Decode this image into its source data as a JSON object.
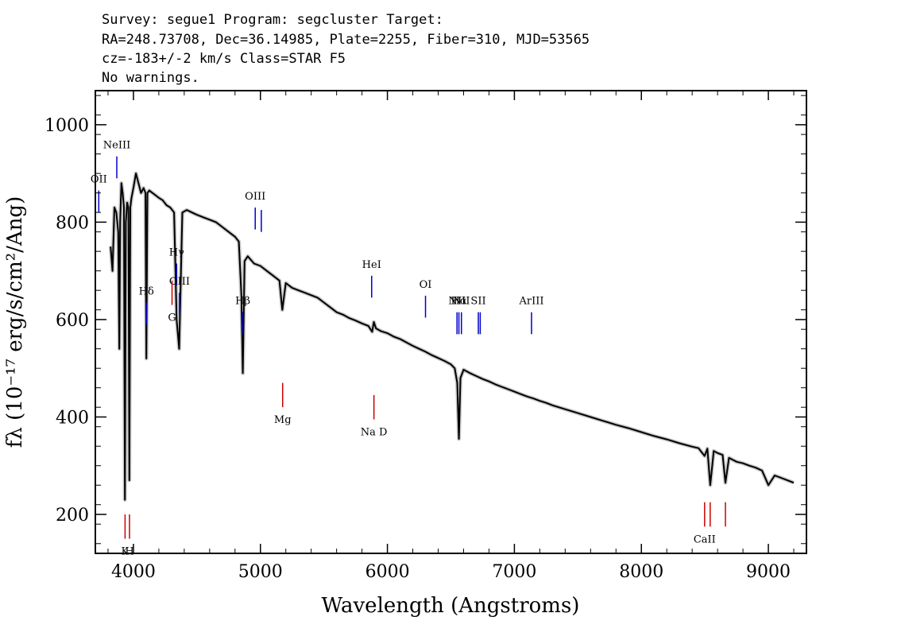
{
  "header": {
    "line1": "Survey: segue1 Program: segcluster Target:",
    "line2": "RA=248.73708, Dec=36.14985, Plate=2255, Fiber=310, MJD=53565",
    "line3": "cz=-183+/-2 km/s Class=STAR F5",
    "line4": "No warnings."
  },
  "chart_data": {
    "type": "line",
    "xlabel": "Wavelength (Angstroms)",
    "ylabel": "fλ (10⁻¹⁷ erg/s/cm²/Ang)",
    "xlim": [
      3700,
      9300
    ],
    "ylim": [
      120,
      1070
    ],
    "x_ticks": [
      4000,
      5000,
      6000,
      7000,
      8000,
      9000
    ],
    "y_ticks": [
      200,
      400,
      600,
      800,
      1000
    ],
    "x_tick_labels": [
      "4000",
      "5000",
      "6000",
      "7000",
      "8000",
      "9000"
    ],
    "y_tick_labels": [
      "200",
      "400",
      "600",
      "800",
      "1000"
    ],
    "grid": false,
    "series": [
      {
        "color": "#000000",
        "error_color": "#b0b0b0",
        "x": [
          3820,
          3835,
          3850,
          3865,
          3880,
          3889,
          3895,
          3905,
          3915,
          3925,
          3933,
          3940,
          3950,
          3960,
          3968,
          3975,
          3985,
          4000,
          4020,
          4040,
          4060,
          4080,
          4095,
          4102,
          4110,
          4125,
          4150,
          4175,
          4200,
          4230,
          4260,
          4290,
          4320,
          4340,
          4360,
          4385,
          4420,
          4460,
          4500,
          4550,
          4600,
          4650,
          4700,
          4750,
          4800,
          4830,
          4850,
          4861,
          4875,
          4900,
          4950,
          5000,
          5050,
          5100,
          5150,
          5172,
          5200,
          5250,
          5300,
          5350,
          5400,
          5450,
          5500,
          5550,
          5600,
          5650,
          5700,
          5750,
          5800,
          5850,
          5880,
          5893,
          5910,
          5950,
          6000,
          6050,
          6100,
          6150,
          6200,
          6250,
          6300,
          6350,
          6400,
          6450,
          6500,
          6530,
          6550,
          6563,
          6575,
          6600,
          6650,
          6700,
          6750,
          6800,
          6850,
          6900,
          6950,
          7000,
          7050,
          7100,
          7150,
          7200,
          7250,
          7300,
          7400,
          7500,
          7600,
          7700,
          7800,
          7900,
          8000,
          8100,
          8200,
          8300,
          8400,
          8450,
          8498,
          8520,
          8542,
          8570,
          8600,
          8640,
          8662,
          8690,
          8750,
          8800,
          8850,
          8900,
          8950,
          9000,
          9050,
          9100,
          9150,
          9200
        ],
        "values": [
          750,
          700,
          830,
          820,
          780,
          540,
          800,
          880,
          860,
          830,
          230,
          800,
          840,
          830,
          270,
          830,
          850,
          870,
          900,
          880,
          860,
          870,
          860,
          520,
          860,
          865,
          860,
          855,
          850,
          845,
          835,
          830,
          820,
          600,
          540,
          820,
          825,
          820,
          815,
          810,
          805,
          800,
          790,
          780,
          770,
          760,
          650,
          490,
          720,
          730,
          715,
          710,
          700,
          690,
          680,
          620,
          675,
          665,
          660,
          655,
          650,
          645,
          635,
          625,
          615,
          610,
          603,
          598,
          592,
          587,
          575,
          595,
          582,
          576,
          572,
          565,
          560,
          553,
          546,
          540,
          534,
          527,
          521,
          515,
          508,
          500,
          470,
          355,
          480,
          497,
          490,
          484,
          478,
          473,
          467,
          462,
          457,
          452,
          447,
          442,
          438,
          433,
          429,
          424,
          416,
          408,
          400,
          392,
          384,
          377,
          369,
          361,
          354,
          346,
          339,
          336,
          320,
          335,
          260,
          330,
          326,
          322,
          265,
          316,
          308,
          305,
          300,
          296,
          290,
          260,
          280,
          275,
          270,
          265
        ]
      }
    ],
    "line_markers": [
      {
        "label": "OII",
        "x": 3727,
        "color": "#0000cc",
        "group": "emission"
      },
      {
        "label": "NeIII",
        "x": 3869,
        "color": "#0000cc",
        "group": "emission"
      },
      {
        "label": "Hδ",
        "x": 4102,
        "color": "#0000cc",
        "group": "emission"
      },
      {
        "label": "Hγ",
        "x": 4340,
        "color": "#0000cc",
        "group": "emission"
      },
      {
        "label": "OIII",
        "x": 4363,
        "color": "#0000cc",
        "group": "emission"
      },
      {
        "label": "Hβ",
        "x": 4861,
        "color": "#0000cc",
        "group": "emission"
      },
      {
        "label": "OIII",
        "x": 4959,
        "color": "#0000cc",
        "group": "emission"
      },
      {
        "label": "",
        "x": 5007,
        "color": "#0000cc",
        "group": "emission"
      },
      {
        "label": "HeI",
        "x": 5876,
        "color": "#0000cc",
        "group": "emission"
      },
      {
        "label": "OI",
        "x": 6300,
        "color": "#0000cc",
        "group": "emission"
      },
      {
        "label": "NII",
        "x": 6548,
        "color": "#0000cc",
        "group": "emission"
      },
      {
        "label": "Hα",
        "x": 6563,
        "color": "#0000cc",
        "group": "emission"
      },
      {
        "label": "NII",
        "x": 6583,
        "color": "#0000cc",
        "group": "emission"
      },
      {
        "label": "SII",
        "x": 6716,
        "color": "#0000cc",
        "group": "emission"
      },
      {
        "label": "",
        "x": 6731,
        "color": "#0000cc",
        "group": "emission"
      },
      {
        "label": "ArIII",
        "x": 7135,
        "color": "#0000cc",
        "group": "emission"
      },
      {
        "label": "K",
        "x": 3934,
        "color": "#cc0000",
        "group": "absorption"
      },
      {
        "label": "H",
        "x": 3969,
        "color": "#cc0000",
        "group": "absorption"
      },
      {
        "label": "G",
        "x": 4304,
        "color": "#cc0000",
        "group": "absorption"
      },
      {
        "label": "Mg",
        "x": 5175,
        "color": "#cc0000",
        "group": "absorption"
      },
      {
        "label": "Na  D",
        "x": 5894,
        "color": "#cc0000",
        "group": "absorption"
      },
      {
        "label": "CaII",
        "x": 8498,
        "color": "#cc0000",
        "group": "absorption"
      },
      {
        "label": "",
        "x": 8542,
        "color": "#cc0000",
        "group": "absorption"
      },
      {
        "label": "",
        "x": 8662,
        "color": "#cc0000",
        "group": "absorption"
      }
    ]
  }
}
